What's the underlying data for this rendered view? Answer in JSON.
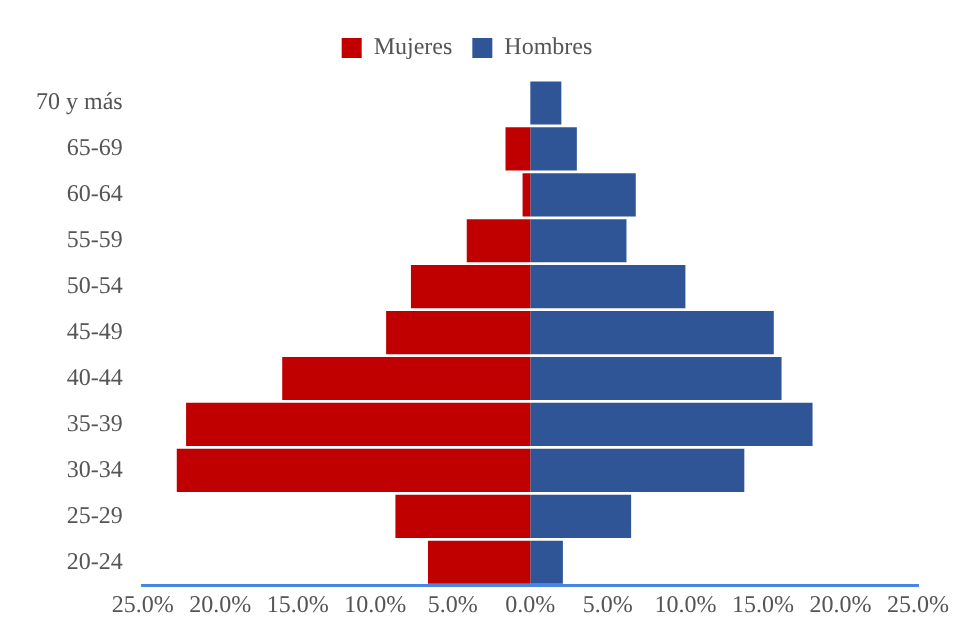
{
  "chart_data": {
    "type": "bar",
    "orientation": "horizontal",
    "stacked": true,
    "legend": "top",
    "grid": false,
    "categories": [
      "70 y más",
      "65-69",
      "60-64",
      "55-59",
      "50-54",
      "45-49",
      "40-44",
      "35-39",
      "30-34",
      "25-29",
      "20-24"
    ],
    "series": [
      {
        "name": "Mujeres",
        "color": "#c00000",
        "values": [
          0,
          -1.6,
          -0.5,
          -4.1,
          -7.7,
          -9.3,
          -16.0,
          -22.2,
          -22.8,
          -8.7,
          -6.6
        ]
      },
      {
        "name": "Hombres",
        "color": "#2f5597",
        "values": [
          2.0,
          3.0,
          6.8,
          6.2,
          10.0,
          15.7,
          16.2,
          18.2,
          13.8,
          6.5,
          2.1
        ]
      }
    ],
    "xlim": [
      -25,
      25
    ],
    "xticks": [
      {
        "value": -25,
        "label": "25.0%"
      },
      {
        "value": -20,
        "label": "20.0%"
      },
      {
        "value": -15,
        "label": "15.0%"
      },
      {
        "value": -10,
        "label": "10.0%"
      },
      {
        "value": -5,
        "label": "5.0%"
      },
      {
        "value": 0,
        "label": "0.0%"
      },
      {
        "value": 5,
        "label": "5.0%"
      },
      {
        "value": 10,
        "label": "10.0%"
      },
      {
        "value": 15,
        "label": "15.0%"
      },
      {
        "value": 20,
        "label": "20.0%"
      },
      {
        "value": 25,
        "label": "25.0%"
      }
    ]
  }
}
